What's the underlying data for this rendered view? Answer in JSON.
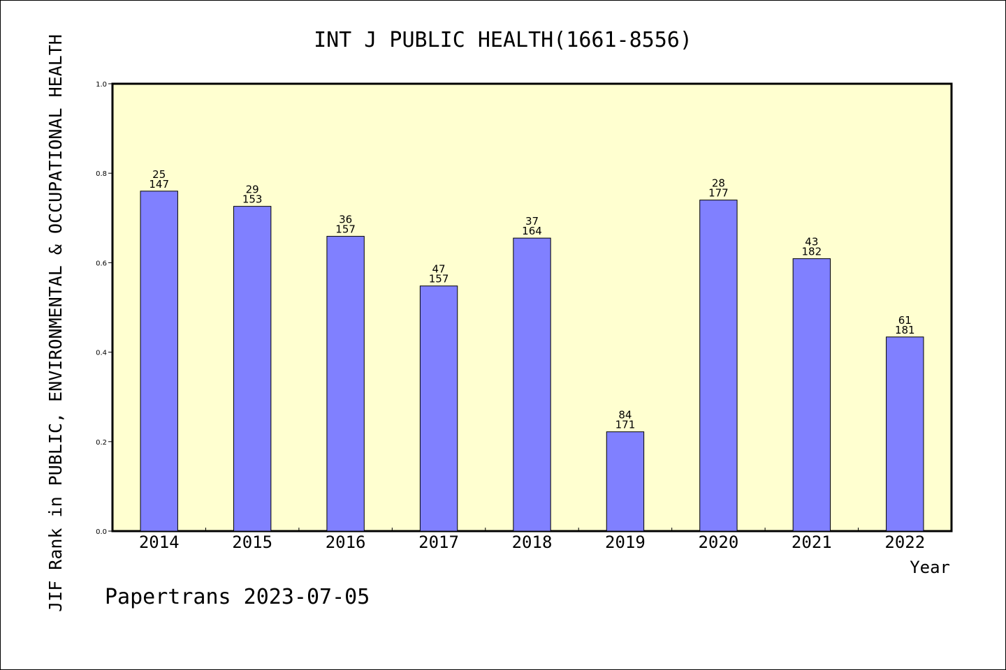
{
  "chart_data": {
    "type": "bar",
    "title": "INT J PUBLIC HEALTH(1661-8556)",
    "ylabel": "JIF Rank in PUBLIC, ENVIRONMENTAL & OCCUPATIONAL HEALTH",
    "xlabel": "Year",
    "ylim": [
      0,
      1.0
    ],
    "yticks": [
      "0.0",
      "0.2",
      "0.4",
      "0.6",
      "0.8",
      "1.0"
    ],
    "categories": [
      "2014",
      "2015",
      "2016",
      "2017",
      "2018",
      "2019",
      "2020",
      "2021",
      "2022"
    ],
    "values": [
      0.76,
      0.726,
      0.659,
      0.548,
      0.655,
      0.222,
      0.74,
      0.609,
      0.434
    ],
    "rank": [
      "25",
      "29",
      "36",
      "47",
      "37",
      "84",
      "28",
      "43",
      "61"
    ],
    "total": [
      "147",
      "153",
      "157",
      "157",
      "164",
      "171",
      "177",
      "182",
      "181"
    ],
    "grid": false,
    "legend": "none",
    "colors": {
      "plot_background": "#ffffd0",
      "bar_fill": "#8080ff",
      "bar_stroke": "#000000"
    }
  },
  "footer": "Papertrans 2023-07-05"
}
